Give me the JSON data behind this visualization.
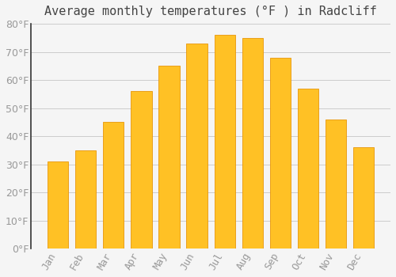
{
  "title": "Average monthly temperatures (°F ) in Radcliff",
  "months": [
    "Jan",
    "Feb",
    "Mar",
    "Apr",
    "May",
    "Jun",
    "Jul",
    "Aug",
    "Sep",
    "Oct",
    "Nov",
    "Dec"
  ],
  "values": [
    31,
    35,
    45,
    56,
    65,
    73,
    76,
    75,
    68,
    57,
    46,
    36
  ],
  "bar_color": "#FFC125",
  "bar_edge_color": "#E8960A",
  "background_color": "#F5F5F5",
  "grid_color": "#CCCCCC",
  "text_color": "#999999",
  "ylim": [
    0,
    80
  ],
  "yticks": [
    0,
    10,
    20,
    30,
    40,
    50,
    60,
    70,
    80
  ],
  "title_fontsize": 11,
  "tick_fontsize": 9,
  "bar_width": 0.75
}
